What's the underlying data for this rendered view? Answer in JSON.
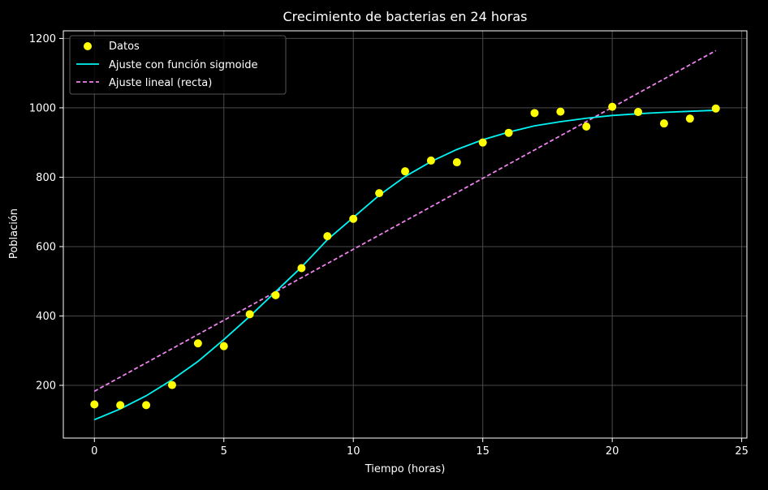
{
  "chart_data": {
    "type": "scatter",
    "title": "Crecimiento de bacterias en 24 horas",
    "xlabel": "Tiempo (horas)",
    "ylabel": "Población",
    "xlim": [
      -1.2,
      25.2
    ],
    "ylim": [
      48,
      1222
    ],
    "xticks": [
      0,
      5,
      10,
      15,
      20,
      25
    ],
    "yticks": [
      200,
      400,
      600,
      800,
      1000,
      1200
    ],
    "grid": true,
    "legend_position": "top-left",
    "colors": {
      "background": "#000000",
      "text": "#ffffff",
      "grid": "#4a4a4a",
      "scatter": "#ffff00",
      "sigmoid": "#00f5f5",
      "linear": "#ee82ee"
    },
    "series": [
      {
        "name": "Datos",
        "kind": "scatter",
        "x": [
          0,
          1,
          2,
          3,
          4,
          5,
          6,
          7,
          8,
          9,
          10,
          11,
          12,
          13,
          14,
          15,
          16,
          17,
          18,
          19,
          20,
          21,
          22,
          23,
          24
        ],
        "y": [
          145,
          143,
          143,
          201,
          321,
          313,
          405,
          460,
          538,
          630,
          680,
          754,
          817,
          848,
          843,
          900,
          928,
          985,
          989,
          946,
          1003,
          988,
          955,
          969,
          998
        ]
      },
      {
        "name": "Ajuste con función sigmoide",
        "kind": "line",
        "x": [
          0,
          1,
          2,
          3,
          4,
          5,
          6,
          7,
          8,
          9,
          10,
          11,
          12,
          13,
          14,
          15,
          16,
          17,
          18,
          19,
          20,
          21,
          22,
          23,
          24
        ],
        "y": [
          101,
          132,
          170,
          216,
          269,
          332,
          399,
          470,
          541,
          620,
          684,
          748,
          802,
          845,
          880,
          908,
          930,
          948,
          960,
          970,
          978,
          983,
          987,
          990,
          993
        ]
      },
      {
        "name": "Ajuste lineal (recta)",
        "kind": "dashed-line",
        "x": [
          0,
          24
        ],
        "y": [
          183,
          1165
        ]
      }
    ]
  }
}
